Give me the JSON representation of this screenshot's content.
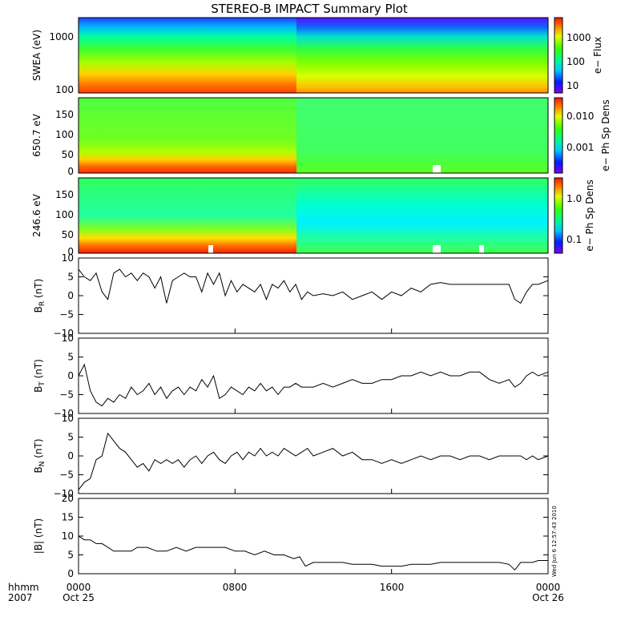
{
  "title": "STEREO-B IMPACT Summary Plot",
  "footer": {
    "row1_left": "hhmm",
    "row2_left": "2007",
    "ticks": [
      {
        "top": "0000",
        "bottom": "Oct 25"
      },
      {
        "top": "0800",
        "bottom": ""
      },
      {
        "top": "1600",
        "bottom": ""
      },
      {
        "top": "0000",
        "bottom": "Oct 26"
      }
    ]
  },
  "timestamp": "Wed Jun  6 12:57:43 2010",
  "chart_data": [
    {
      "type": "heatmap",
      "ylabel": "SWEA (eV)",
      "yscale": "log",
      "ylim": [
        100,
        2000
      ],
      "yticks": [
        "1000",
        "100"
      ],
      "colorbar": {
        "label": "e− Flux",
        "scale": "log",
        "ticks": [
          "1000",
          "100",
          "10"
        ],
        "range": [
          3,
          8000
        ]
      },
      "x_range_hours": [
        0,
        24
      ]
    },
    {
      "type": "heatmap",
      "ylabel": "650.7 eV",
      "ylim": [
        0,
        180
      ],
      "yticks": [
        "150",
        "100",
        "50",
        "0"
      ],
      "colorbar": {
        "label": "e− Ph Sp Dens",
        "scale": "log",
        "ticks": [
          "0.010",
          "0.001"
        ],
        "range": [
          0.0001,
          0.03
        ]
      },
      "x_range_hours": [
        0,
        24
      ]
    },
    {
      "type": "heatmap",
      "ylabel": "246.6 eV",
      "ylim": [
        0,
        180
      ],
      "yticks": [
        "150",
        "100",
        "50",
        "0"
      ],
      "colorbar": {
        "label": "e− Ph Sp Dens",
        "scale": "log",
        "ticks": [
          "1.0",
          "0.1"
        ],
        "range": [
          0.04,
          2.0
        ]
      },
      "x_range_hours": [
        0,
        24
      ]
    },
    {
      "type": "line",
      "ylabel": "B_R (nT)",
      "ylim": [
        -10,
        10
      ],
      "yticks": [
        "10",
        "5",
        "0",
        "−5",
        "−10"
      ],
      "x": [
        0,
        0.3,
        0.6,
        0.9,
        1.2,
        1.5,
        1.8,
        2.1,
        2.4,
        2.7,
        3.0,
        3.3,
        3.6,
        3.9,
        4.2,
        4.5,
        4.8,
        5.1,
        5.4,
        5.7,
        6.0,
        6.3,
        6.6,
        6.9,
        7.2,
        7.5,
        7.8,
        8.1,
        8.4,
        8.7,
        9.0,
        9.3,
        9.6,
        9.9,
        10.2,
        10.5,
        10.8,
        11.1,
        11.4,
        11.7,
        12.0,
        12.5,
        13.0,
        13.5,
        14.0,
        14.5,
        15.0,
        15.5,
        16.0,
        16.5,
        17.0,
        17.5,
        18.0,
        18.5,
        19.0,
        19.5,
        20.0,
        20.5,
        21.0,
        21.5,
        22.0,
        22.3,
        22.6,
        22.9,
        23.2,
        23.5,
        24.0
      ],
      "y": [
        7,
        5,
        4,
        6,
        1,
        -1,
        6,
        7,
        5,
        6,
        4,
        6,
        5,
        2,
        5,
        -2,
        4,
        5,
        6,
        5,
        5,
        1,
        6,
        3,
        6,
        0,
        4,
        1,
        3,
        2,
        1,
        3,
        -1,
        3,
        2,
        4,
        1,
        3,
        -1,
        1,
        0,
        0.5,
        0,
        1,
        -1,
        0,
        1,
        -1,
        1,
        0,
        2,
        1,
        3,
        3.5,
        3,
        3,
        3,
        3,
        3,
        3,
        3,
        -1,
        -2,
        1,
        3,
        3,
        4
      ],
      "series": [
        {
          "color": "#000000"
        }
      ]
    },
    {
      "type": "line",
      "ylabel": "B_T (nT)",
      "ylim": [
        -10,
        10
      ],
      "yticks": [
        "10",
        "5",
        "0",
        "−5",
        "−10"
      ],
      "x": [
        0,
        0.3,
        0.6,
        0.9,
        1.2,
        1.5,
        1.8,
        2.1,
        2.4,
        2.7,
        3.0,
        3.3,
        3.6,
        3.9,
        4.2,
        4.5,
        4.8,
        5.1,
        5.4,
        5.7,
        6.0,
        6.3,
        6.6,
        6.9,
        7.2,
        7.5,
        7.8,
        8.1,
        8.4,
        8.7,
        9.0,
        9.3,
        9.6,
        9.9,
        10.2,
        10.5,
        10.8,
        11.1,
        11.4,
        11.7,
        12.0,
        12.5,
        13.0,
        13.5,
        14.0,
        14.5,
        15.0,
        15.5,
        16.0,
        16.5,
        17.0,
        17.5,
        18.0,
        18.5,
        19.0,
        19.5,
        20.0,
        20.5,
        21.0,
        21.5,
        22.0,
        22.3,
        22.6,
        22.9,
        23.2,
        23.5,
        24.0
      ],
      "y": [
        0,
        3,
        -4,
        -7,
        -8,
        -6,
        -7,
        -5,
        -6,
        -3,
        -5,
        -4,
        -2,
        -5,
        -3,
        -6,
        -4,
        -3,
        -5,
        -3,
        -4,
        -1,
        -3,
        0,
        -6,
        -5,
        -3,
        -4,
        -5,
        -3,
        -4,
        -2,
        -4,
        -3,
        -5,
        -3,
        -3,
        -2,
        -3,
        -3,
        -3,
        -2,
        -3,
        -2,
        -1,
        -2,
        -2,
        -1,
        -1,
        0,
        0,
        1,
        0,
        1,
        0,
        0,
        1,
        1,
        -1,
        -2,
        -1,
        -3,
        -2,
        0,
        1,
        0,
        1
      ],
      "series": [
        {
          "color": "#000000"
        }
      ]
    },
    {
      "type": "line",
      "ylabel": "B_N (nT)",
      "ylim": [
        -10,
        10
      ],
      "yticks": [
        "10",
        "5",
        "0",
        "−5",
        "−10"
      ],
      "x": [
        0,
        0.3,
        0.6,
        0.9,
        1.2,
        1.5,
        1.8,
        2.1,
        2.4,
        2.7,
        3.0,
        3.3,
        3.6,
        3.9,
        4.2,
        4.5,
        4.8,
        5.1,
        5.4,
        5.7,
        6.0,
        6.3,
        6.6,
        6.9,
        7.2,
        7.5,
        7.8,
        8.1,
        8.4,
        8.7,
        9.0,
        9.3,
        9.6,
        9.9,
        10.2,
        10.5,
        10.8,
        11.1,
        11.4,
        11.7,
        12.0,
        12.5,
        13.0,
        13.5,
        14.0,
        14.5,
        15.0,
        15.5,
        16.0,
        16.5,
        17.0,
        17.5,
        18.0,
        18.5,
        19.0,
        19.5,
        20.0,
        20.5,
        21.0,
        21.5,
        22.0,
        22.3,
        22.6,
        22.9,
        23.2,
        23.5,
        24.0
      ],
      "y": [
        -9,
        -7,
        -6,
        -1,
        0,
        6,
        4,
        2,
        1,
        -1,
        -3,
        -2,
        -4,
        -1,
        -2,
        -1,
        -2,
        -1,
        -3,
        -1,
        0,
        -2,
        0,
        1,
        -1,
        -2,
        0,
        1,
        -1,
        1,
        0,
        2,
        0,
        1,
        0,
        2,
        1,
        0,
        1,
        2,
        0,
        1,
        2,
        0,
        1,
        -1,
        -1,
        -2,
        -1,
        -2,
        -1,
        0,
        -1,
        0,
        0,
        -1,
        0,
        0,
        -1,
        0,
        0,
        0,
        0,
        -1,
        0,
        -1,
        0
      ],
      "series": [
        {
          "color": "#000000"
        }
      ]
    },
    {
      "type": "line",
      "ylabel": "|B| (nT)",
      "ylim": [
        0,
        20
      ],
      "yticks": [
        "20",
        "15",
        "10",
        "5",
        "0"
      ],
      "x": [
        0,
        0.3,
        0.6,
        0.9,
        1.2,
        1.5,
        1.8,
        2.1,
        2.4,
        2.7,
        3.0,
        3.5,
        4.0,
        4.5,
        5.0,
        5.5,
        6.0,
        6.5,
        7.0,
        7.5,
        8.0,
        8.5,
        9.0,
        9.5,
        10.0,
        10.5,
        11.0,
        11.3,
        11.6,
        12.0,
        12.5,
        13.0,
        13.5,
        14.0,
        14.5,
        15.0,
        15.5,
        16.0,
        16.5,
        17.0,
        17.5,
        18.0,
        18.5,
        19.0,
        19.5,
        20.0,
        20.5,
        21.0,
        21.5,
        22.0,
        22.3,
        22.6,
        22.9,
        23.2,
        23.5,
        24.0
      ],
      "y": [
        10,
        9,
        9,
        8,
        8,
        7,
        6,
        6,
        6,
        6,
        7,
        7,
        6,
        6,
        7,
        6,
        7,
        7,
        7,
        7,
        6,
        6,
        5,
        6,
        5,
        5,
        4,
        4.5,
        2,
        3,
        3,
        3,
        3,
        2.5,
        2.5,
        2.5,
        2,
        2,
        2,
        2.5,
        2.5,
        2.5,
        3,
        3,
        3,
        3,
        3,
        3,
        3,
        2.5,
        1,
        3,
        3,
        3,
        3.5,
        3.5
      ],
      "series": [
        {
          "color": "#000000"
        }
      ]
    }
  ]
}
